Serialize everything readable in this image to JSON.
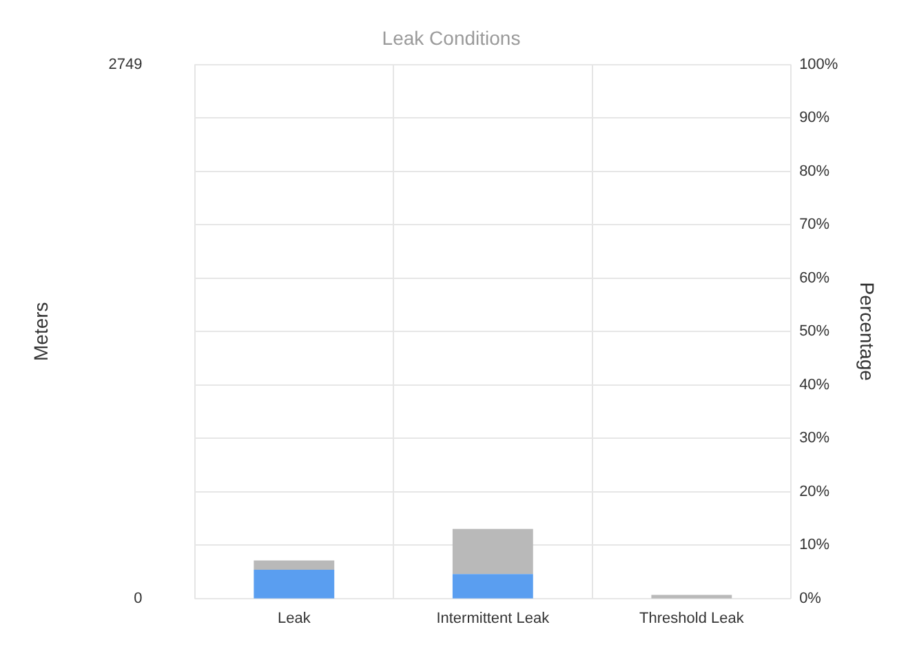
{
  "chart_data": {
    "type": "bar",
    "title": "Leak Conditions",
    "ylabel": "Meters",
    "y2label": "Percentage",
    "categories": [
      "Leak",
      "Intermittent Leak",
      "Threshold Leak"
    ],
    "stacked": true,
    "series": [
      {
        "color": "#5a9ef0",
        "values": [
          148,
          126,
          0
        ]
      },
      {
        "color": "#b9b9b9",
        "values": [
          48,
          232,
          19
        ]
      }
    ],
    "ylim": [
      0,
      2749
    ],
    "yticks": [
      0,
      2749
    ],
    "y2lim": [
      0,
      100
    ],
    "y2ticks": [
      {
        "value": 0,
        "label": "0%"
      },
      {
        "value": 10,
        "label": "10%"
      },
      {
        "value": 20,
        "label": "20%"
      },
      {
        "value": 30,
        "label": "30%"
      },
      {
        "value": 40,
        "label": "40%"
      },
      {
        "value": 50,
        "label": "50%"
      },
      {
        "value": 60,
        "label": "60%"
      },
      {
        "value": 70,
        "label": "70%"
      },
      {
        "value": 80,
        "label": "80%"
      },
      {
        "value": 90,
        "label": "90%"
      },
      {
        "value": 100,
        "label": "100%"
      }
    ],
    "grid": true,
    "legend": false
  }
}
